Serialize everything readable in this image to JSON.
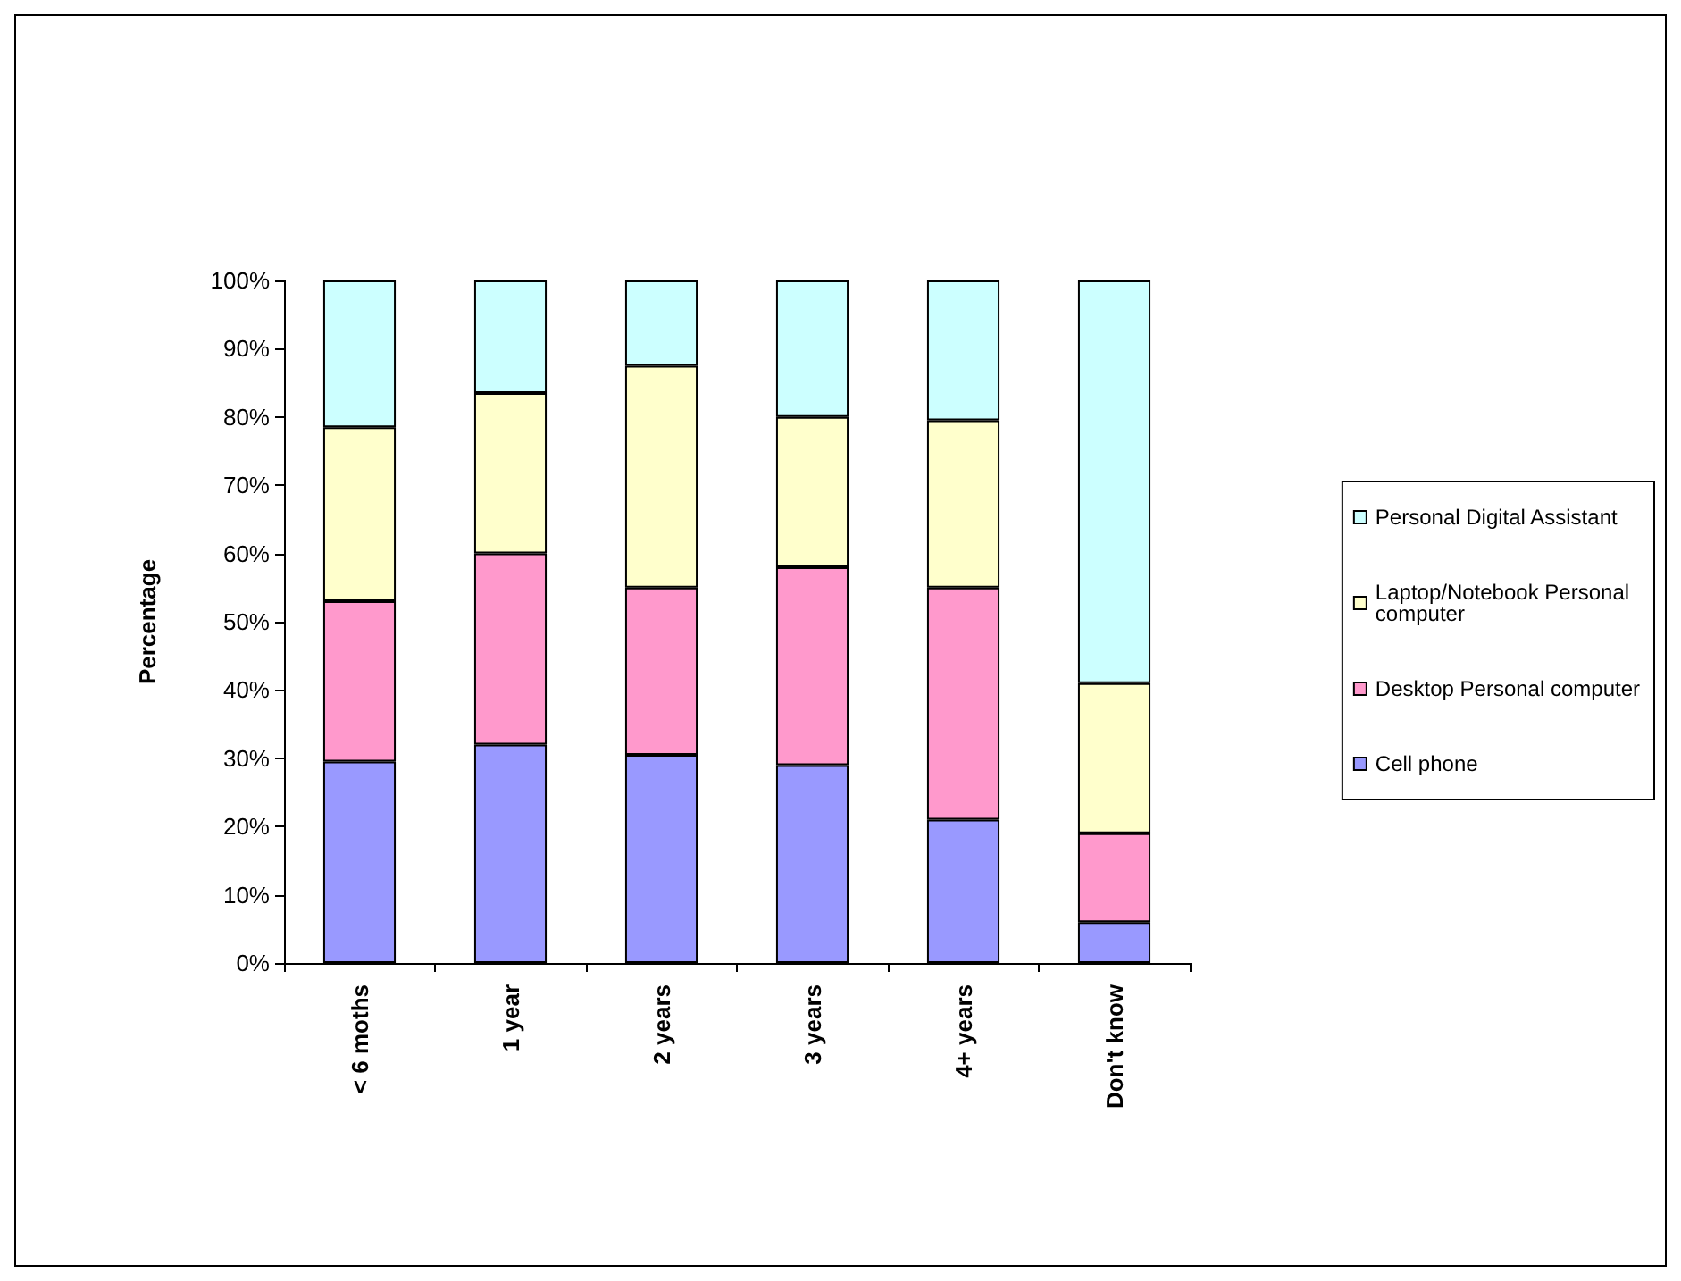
{
  "chart_data": {
    "type": "bar",
    "ylabel": "Percentage",
    "categories": [
      "< 6 moths",
      "1 year",
      "2 years",
      "3 years",
      "4+ years",
      "Don't know"
    ],
    "stacked": true,
    "legend": "right",
    "ylim": [
      0,
      100
    ],
    "yticks": [
      {
        "value": 0,
        "label": "0%"
      },
      {
        "value": 10,
        "label": "10%"
      },
      {
        "value": 20,
        "label": "20%"
      },
      {
        "value": 30,
        "label": "30%"
      },
      {
        "value": 40,
        "label": "40%"
      },
      {
        "value": 50,
        "label": "50%"
      },
      {
        "value": 60,
        "label": "60%"
      },
      {
        "value": 70,
        "label": "70%"
      },
      {
        "value": 80,
        "label": "80%"
      },
      {
        "value": 90,
        "label": "90%"
      },
      {
        "value": 100,
        "label": "100%"
      }
    ],
    "series": [
      {
        "name": "Cell phone",
        "color": "#9999ff",
        "values": [
          29.5,
          32,
          30.5,
          29,
          21,
          6
        ]
      },
      {
        "name": "Desktop Personal computer",
        "color": "#ff99cc",
        "values": [
          23.5,
          28,
          24.5,
          29,
          34,
          13
        ]
      },
      {
        "name": "Laptop/Notebook Personal computer",
        "color": "#ffffcc",
        "values": [
          25.5,
          23.5,
          32.5,
          22,
          24.5,
          22
        ]
      },
      {
        "name": "Personal Digital Assistant",
        "color": "#ccffff",
        "values": [
          21.5,
          16.5,
          12.5,
          20,
          20.5,
          59
        ]
      }
    ]
  }
}
